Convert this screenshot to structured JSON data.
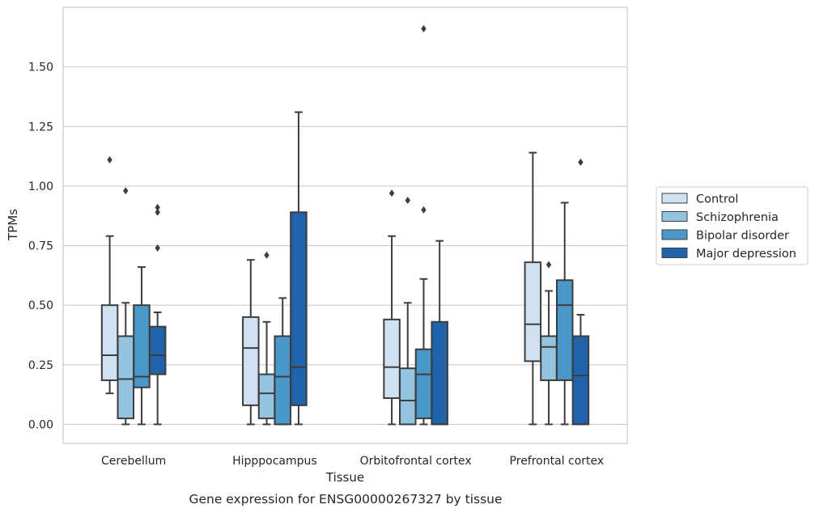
{
  "chart_data": {
    "type": "box",
    "xlabel": "Tissue",
    "ylabel": "TPMs",
    "caption": "Gene expression for ENSG00000267327 by tissue",
    "ylim": [
      -0.08,
      1.75
    ],
    "yticks": [
      0.0,
      0.25,
      0.5,
      0.75,
      1.0,
      1.25,
      1.5
    ],
    "ytick_labels": [
      "0.00",
      "0.25",
      "0.50",
      "0.75",
      "1.00",
      "1.25",
      "1.50"
    ],
    "grid": "horizontal",
    "legend_position": "right",
    "categories": [
      "Cerebellum",
      "Hipppocampus",
      "Orbitofrontal cortex",
      "Prefrontal cortex"
    ],
    "series": [
      {
        "name": "Control",
        "color": "#d0e1f2",
        "boxes": [
          {
            "whislo": 0.13,
            "q1": 0.185,
            "med": 0.29,
            "q3": 0.5,
            "whishi": 0.79,
            "fliers": [
              1.11
            ]
          },
          {
            "whislo": 0.0,
            "q1": 0.08,
            "med": 0.32,
            "q3": 0.45,
            "whishi": 0.69,
            "fliers": []
          },
          {
            "whislo": 0.0,
            "q1": 0.11,
            "med": 0.24,
            "q3": 0.44,
            "whishi": 0.79,
            "fliers": [
              0.97
            ]
          },
          {
            "whislo": 0.0,
            "q1": 0.265,
            "med": 0.42,
            "q3": 0.68,
            "whishi": 1.14,
            "fliers": []
          }
        ]
      },
      {
        "name": "Schizophrenia",
        "color": "#94c4df",
        "boxes": [
          {
            "whislo": 0.0,
            "q1": 0.025,
            "med": 0.19,
            "q3": 0.37,
            "whishi": 0.51,
            "fliers": [
              0.98
            ]
          },
          {
            "whislo": 0.0,
            "q1": 0.025,
            "med": 0.13,
            "q3": 0.21,
            "whishi": 0.43,
            "fliers": [
              0.71
            ]
          },
          {
            "whislo": 0.0,
            "q1": 0.0,
            "med": 0.1,
            "q3": 0.235,
            "whishi": 0.51,
            "fliers": [
              0.94
            ]
          },
          {
            "whislo": 0.0,
            "q1": 0.185,
            "med": 0.325,
            "q3": 0.37,
            "whishi": 0.56,
            "fliers": [
              0.67
            ]
          }
        ]
      },
      {
        "name": "Bipolar disorder",
        "color": "#4a98c9",
        "boxes": [
          {
            "whislo": 0.0,
            "q1": 0.155,
            "med": 0.2,
            "q3": 0.5,
            "whishi": 0.66,
            "fliers": []
          },
          {
            "whislo": 0.0,
            "q1": 0.0,
            "med": 0.2,
            "q3": 0.37,
            "whishi": 0.53,
            "fliers": []
          },
          {
            "whislo": 0.0,
            "q1": 0.025,
            "med": 0.21,
            "q3": 0.315,
            "whishi": 0.61,
            "fliers": [
              0.9,
              1.66
            ]
          },
          {
            "whislo": 0.0,
            "q1": 0.185,
            "med": 0.5,
            "q3": 0.605,
            "whishi": 0.93,
            "fliers": []
          }
        ]
      },
      {
        "name": "Major depression",
        "color": "#2163aa",
        "boxes": [
          {
            "whislo": 0.0,
            "q1": 0.21,
            "med": 0.29,
            "q3": 0.41,
            "whishi": 0.47,
            "fliers": [
              0.74,
              0.89,
              0.91
            ]
          },
          {
            "whislo": 0.0,
            "q1": 0.08,
            "med": 0.24,
            "q3": 0.89,
            "whishi": 1.31,
            "fliers": []
          },
          {
            "whislo": 0.0,
            "q1": 0.0,
            "med": 0.0,
            "q3": 0.43,
            "whishi": 0.77,
            "fliers": []
          },
          {
            "whislo": 0.0,
            "q1": 0.0,
            "med": 0.205,
            "q3": 0.37,
            "whishi": 0.46,
            "fliers": [
              1.1
            ]
          }
        ]
      }
    ]
  }
}
